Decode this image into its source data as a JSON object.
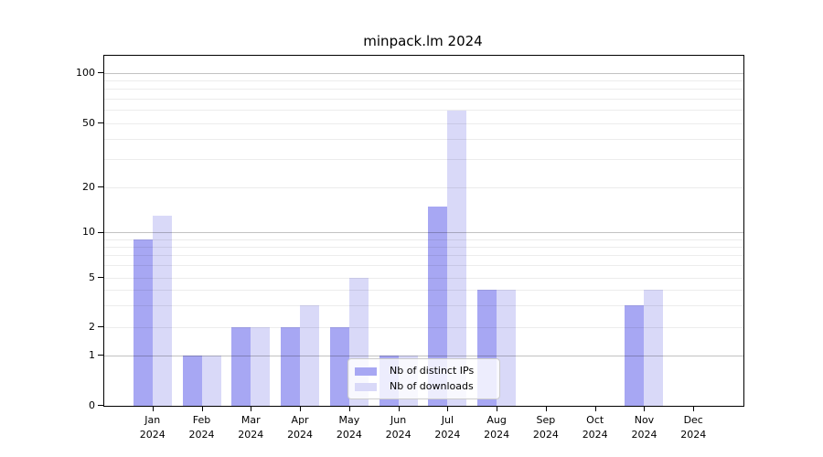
{
  "chart_data": {
    "type": "bar",
    "title": "minpack.lm 2024",
    "year": "2024",
    "categories": [
      "Jan",
      "Feb",
      "Mar",
      "Apr",
      "May",
      "Jun",
      "Jul",
      "Aug",
      "Sep",
      "Oct",
      "Nov",
      "Dec"
    ],
    "x_tick_labels": [
      "Jan 2024",
      "Feb 2024",
      "Mar 2024",
      "Apr 2024",
      "May 2024",
      "Jun 2024",
      "Jul 2024",
      "Aug 2024",
      "Sep 2024",
      "Oct 2024",
      "Nov 2024",
      "Dec 2024"
    ],
    "series": [
      {
        "name": "Nb of distinct IPs",
        "color": "#a7a7f3",
        "values": [
          9,
          1,
          2,
          2,
          2,
          1,
          15,
          4,
          0,
          0,
          3,
          0
        ]
      },
      {
        "name": "Nb of downloads",
        "color": "#d9d9f8",
        "values": [
          13,
          1,
          2,
          3,
          5,
          1,
          60,
          4,
          0,
          0,
          4,
          0
        ]
      }
    ],
    "yscale": "log-with-zero-baseline",
    "y_tick_values": [
      0,
      1,
      2,
      5,
      10,
      20,
      50,
      100
    ],
    "major_grid_values": [
      1,
      10,
      100
    ],
    "minor_grid_values": [
      2,
      3,
      4,
      5,
      6,
      7,
      8,
      9,
      20,
      30,
      40,
      50,
      60,
      70,
      80,
      90
    ],
    "ylim": [
      0,
      130
    ],
    "grid": "horizontal major and minor, on",
    "legend_position": "inside bottom-center",
    "colors": {
      "axis": "#000000",
      "major_grid": "#c2c2c2",
      "minor_grid": "#ededed",
      "background": "#ffffff"
    }
  }
}
